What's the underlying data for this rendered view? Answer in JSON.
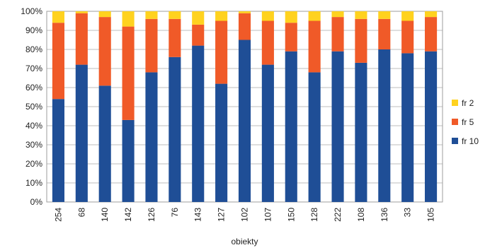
{
  "chart_data": {
    "type": "bar",
    "stacked": true,
    "percent": true,
    "categories": [
      "254",
      "68",
      "140",
      "142",
      "126",
      "76",
      "143",
      "127",
      "102",
      "107",
      "150",
      "128",
      "222",
      "108",
      "136",
      "33",
      "105"
    ],
    "series": [
      {
        "name": "fr 10",
        "color": "#1f4e96",
        "values": [
          54,
          72,
          61,
          43,
          68,
          76,
          82,
          62,
          85,
          72,
          79,
          68,
          79,
          73,
          80,
          78,
          79
        ]
      },
      {
        "name": "fr 5",
        "color": "#f05a28",
        "values": [
          40,
          27,
          36,
          49,
          28,
          20,
          11,
          33,
          14,
          23,
          15,
          27,
          18,
          23,
          16,
          17,
          18
        ]
      },
      {
        "name": "fr 2",
        "color": "#ffd21f",
        "values": [
          6,
          1,
          3,
          8,
          4,
          4,
          7,
          5,
          1,
          5,
          6,
          5,
          3,
          4,
          4,
          5,
          3
        ]
      }
    ],
    "legend_order": [
      "fr 2",
      "fr 5",
      "fr 10"
    ],
    "y_ticks": [
      "0%",
      "10%",
      "20%",
      "30%",
      "40%",
      "50%",
      "60%",
      "70%",
      "80%",
      "90%",
      "100%"
    ],
    "ylim": [
      0,
      100
    ],
    "xlabel": "obiekty",
    "ylabel": "",
    "grid": true,
    "legend_position": "right"
  }
}
